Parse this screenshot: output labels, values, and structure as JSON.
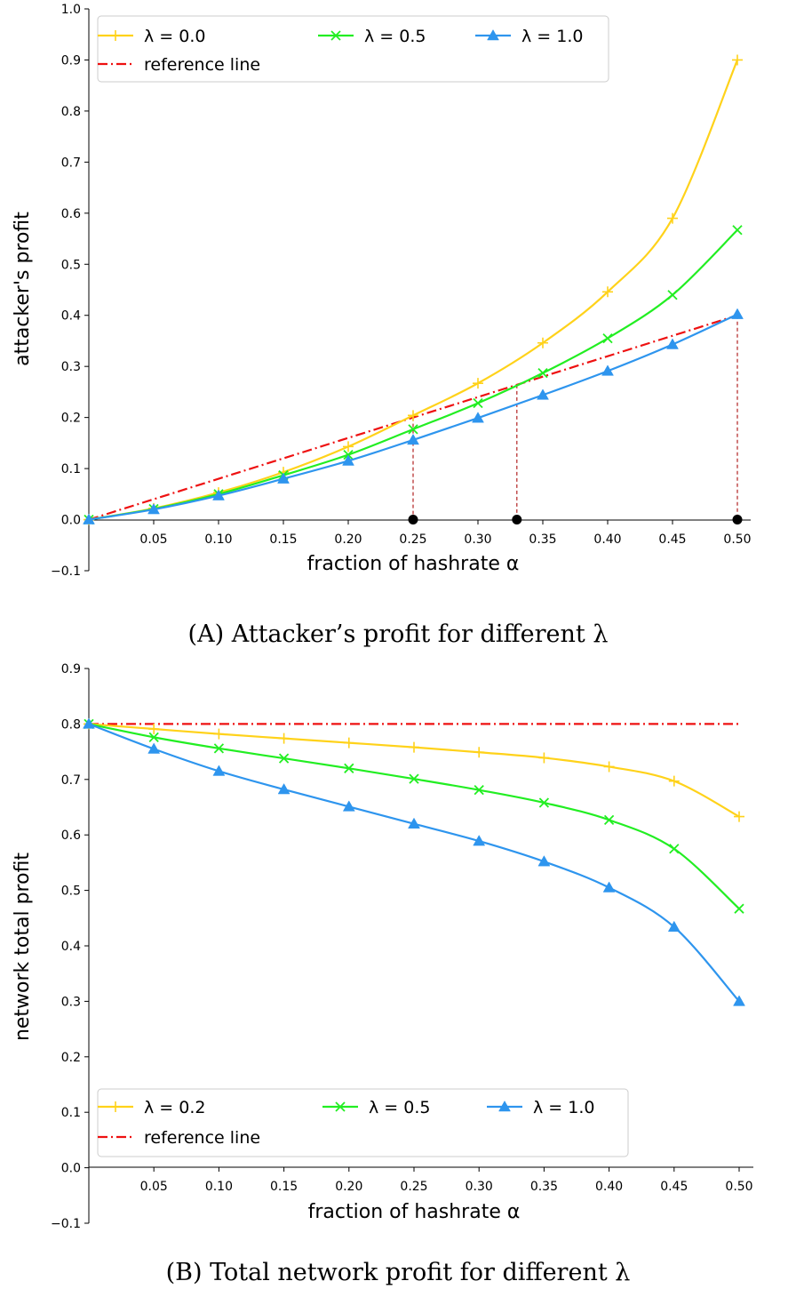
{
  "chart_data": [
    {
      "type": "line",
      "caption": "(A) Attacker’s profit for different  λ",
      "xlabel": "fraction of hashrate α",
      "ylabel": "attacker's profit",
      "xlim": [
        0.0,
        0.5
      ],
      "ylim": [
        -0.1,
        1.0
      ],
      "xticks": [
        "0.05",
        "0.10",
        "0.15",
        "0.20",
        "0.25",
        "0.30",
        "0.35",
        "0.40",
        "0.45",
        "0.50"
      ],
      "yticks": [
        "−0.1",
        "0.0",
        "0.1",
        "0.2",
        "0.3",
        "0.4",
        "0.5",
        "0.6",
        "0.7",
        "0.8",
        "0.9",
        "1.0"
      ],
      "legend_position": "top",
      "x": [
        0.0,
        0.05,
        0.1,
        0.15,
        0.2,
        0.25,
        0.3,
        0.35,
        0.4,
        0.45,
        0.5
      ],
      "series": [
        {
          "name": "λ = 0.0",
          "color": "#FFD21A",
          "marker": "plus",
          "values": [
            0.0,
            0.022,
            0.053,
            0.093,
            0.143,
            0.204,
            0.267,
            0.346,
            0.446,
            0.59,
            0.9
          ]
        },
        {
          "name": "λ = 0.5",
          "color": "#22EE22",
          "marker": "x",
          "values": [
            0.0,
            0.021,
            0.05,
            0.087,
            0.127,
            0.177,
            0.228,
            0.287,
            0.355,
            0.44,
            0.567
          ]
        },
        {
          "name": "λ = 1.0",
          "color": "#2E95EE",
          "marker": "triangle",
          "values": [
            0.0,
            0.02,
            0.047,
            0.08,
            0.115,
            0.156,
            0.199,
            0.244,
            0.291,
            0.343,
            0.402
          ]
        },
        {
          "name": "reference line",
          "color": "#EE1111",
          "marker": "none",
          "dash": "dashdot",
          "values": [
            0.0,
            0.04,
            0.08,
            0.12,
            0.16,
            0.2,
            0.24,
            0.28,
            0.32,
            0.36,
            0.4
          ]
        }
      ],
      "crossings": [
        {
          "x": 0.25,
          "y": 0.2
        },
        {
          "x": 0.33,
          "y": 0.264
        },
        {
          "x": 0.5,
          "y": 0.4
        }
      ]
    },
    {
      "type": "line",
      "caption": "(B) Total network profit for different  λ",
      "xlabel": "fraction of hashrate α",
      "ylabel": "network total profit",
      "xlim": [
        0.0,
        0.5
      ],
      "ylim": [
        -0.1,
        0.9
      ],
      "xticks": [
        "0.05",
        "0.10",
        "0.15",
        "0.20",
        "0.25",
        "0.30",
        "0.35",
        "0.40",
        "0.45",
        "0.50"
      ],
      "yticks": [
        "−0.1",
        "0.0",
        "0.1",
        "0.2",
        "0.3",
        "0.4",
        "0.5",
        "0.6",
        "0.7",
        "0.8",
        "0.9"
      ],
      "legend_position": "bottom",
      "x": [
        0.0,
        0.05,
        0.1,
        0.15,
        0.2,
        0.25,
        0.3,
        0.35,
        0.4,
        0.45,
        0.5
      ],
      "series": [
        {
          "name": "λ = 0.2",
          "color": "#FFD21A",
          "marker": "plus",
          "values": [
            0.8,
            0.791,
            0.782,
            0.774,
            0.766,
            0.758,
            0.749,
            0.739,
            0.723,
            0.697,
            0.633
          ]
        },
        {
          "name": "λ = 0.5",
          "color": "#22EE22",
          "marker": "x",
          "values": [
            0.8,
            0.776,
            0.756,
            0.738,
            0.72,
            0.701,
            0.681,
            0.658,
            0.627,
            0.575,
            0.467
          ]
        },
        {
          "name": "λ = 1.0",
          "color": "#2E95EE",
          "marker": "triangle",
          "values": [
            0.8,
            0.755,
            0.715,
            0.682,
            0.651,
            0.62,
            0.589,
            0.552,
            0.505,
            0.434,
            0.3
          ]
        },
        {
          "name": "reference line",
          "color": "#EE1111",
          "marker": "none",
          "dash": "dashdot",
          "values": [
            0.8,
            0.8,
            0.8,
            0.8,
            0.8,
            0.8,
            0.8,
            0.8,
            0.8,
            0.8,
            0.8
          ]
        }
      ]
    }
  ]
}
